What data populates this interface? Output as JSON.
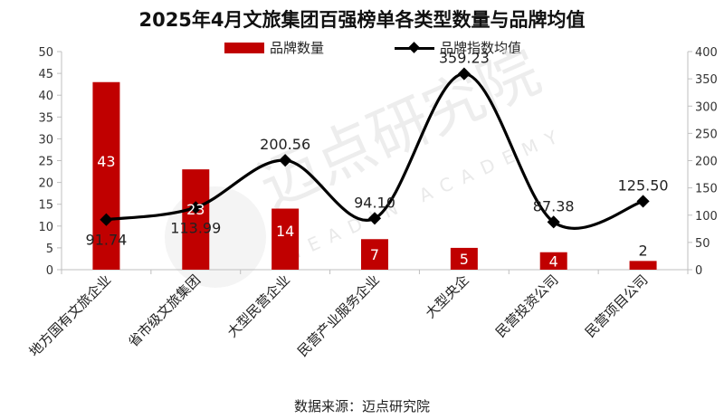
{
  "title": "2025年4月文旅集团百强榜单各类型数量与品牌均值",
  "legend": {
    "bar_label": "品牌数量",
    "line_label": "品牌指数均值"
  },
  "source": "数据来源：迈点研究院",
  "watermark": {
    "text_cn": "迈点研究院",
    "text_en": "MEADIN ACADEMY"
  },
  "colors": {
    "bar": "#c00000",
    "line": "#000000",
    "bar_label": "#ffffff",
    "axis": "#bfbfbf"
  },
  "chart_data": {
    "type": "bar",
    "categories": [
      "地方国有文旅企业",
      "省市级文旅集团",
      "大型民营企业",
      "民营产业服务企业",
      "大型央企",
      "民营投资公司",
      "民营项目公司"
    ],
    "series": [
      {
        "name": "品牌数量",
        "type": "bar",
        "axis": "left",
        "values": [
          43,
          23,
          14,
          7,
          5,
          4,
          2
        ],
        "labels": [
          "43",
          "23",
          "14",
          "7",
          "5",
          "4",
          "2"
        ]
      },
      {
        "name": "品牌指数均值",
        "type": "line",
        "smooth": true,
        "marker": "diamond",
        "axis": "right",
        "values": [
          91.74,
          113.99,
          200.56,
          94.1,
          359.23,
          87.38,
          125.5
        ],
        "labels": [
          "91.74",
          "113.99",
          "200.56",
          "94.10",
          "359.23",
          "87.38",
          "125.50"
        ]
      }
    ],
    "y_left": {
      "min": 0,
      "max": 50,
      "step": 5,
      "ticks": [
        "0",
        "5",
        "10",
        "15",
        "20",
        "25",
        "30",
        "35",
        "40",
        "45",
        "50"
      ]
    },
    "y_right": {
      "min": 0,
      "max": 400,
      "step": 50,
      "ticks": [
        "0",
        "50",
        "100",
        "150",
        "200",
        "250",
        "300",
        "350",
        "400"
      ]
    },
    "grid": false,
    "legend_position": "top"
  }
}
